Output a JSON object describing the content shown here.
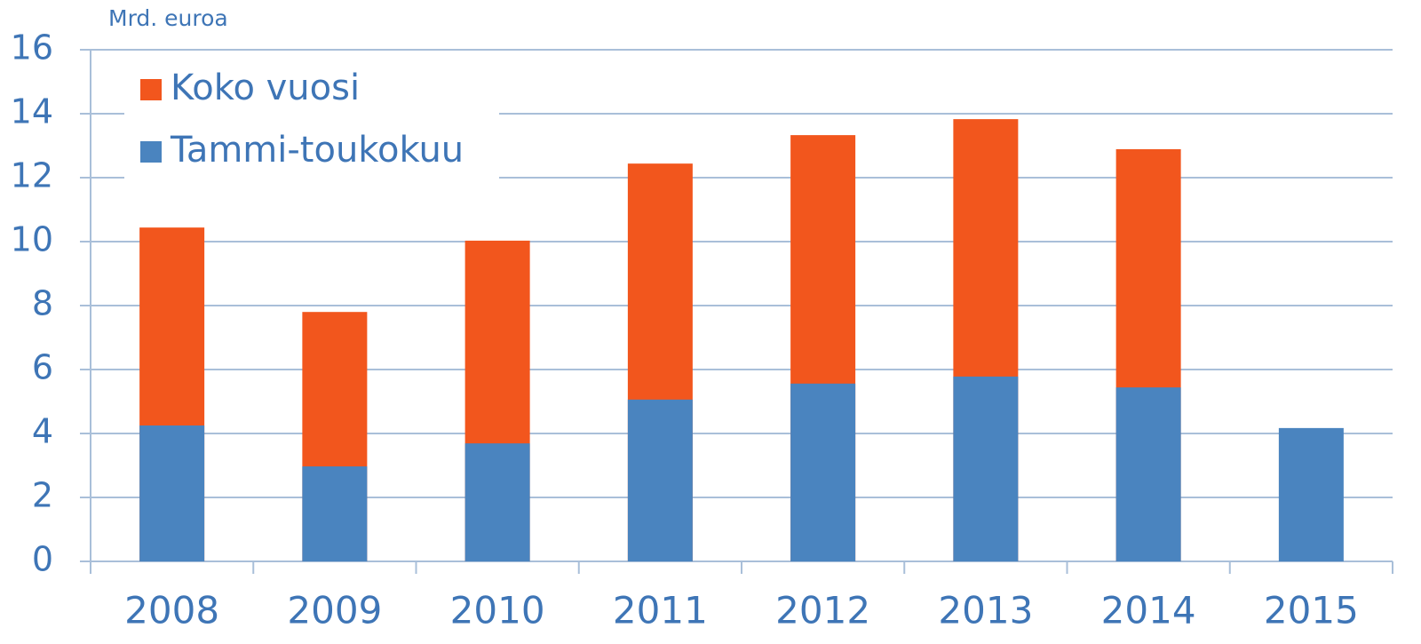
{
  "chart_data": {
    "type": "bar",
    "overlap": true,
    "unit_label": "Mrd. euroa",
    "categories": [
      "2008",
      "2009",
      "2010",
      "2011",
      "2012",
      "2013",
      "2014",
      "2015"
    ],
    "series": [
      {
        "name": "Koko vuosi",
        "color": "#f2561d",
        "values": [
          10.44,
          7.8,
          10.03,
          12.44,
          13.33,
          13.83,
          12.89,
          null
        ]
      },
      {
        "name": "Tammi-toukokuu",
        "color": "#4a84bf",
        "values": [
          4.25,
          2.97,
          3.69,
          5.06,
          5.56,
          5.78,
          5.44,
          4.17
        ]
      }
    ],
    "ylim": [
      0,
      16
    ],
    "yticks": [
      0,
      2,
      4,
      6,
      8,
      10,
      12,
      14,
      16
    ],
    "grid": true,
    "legend": "upper left"
  }
}
